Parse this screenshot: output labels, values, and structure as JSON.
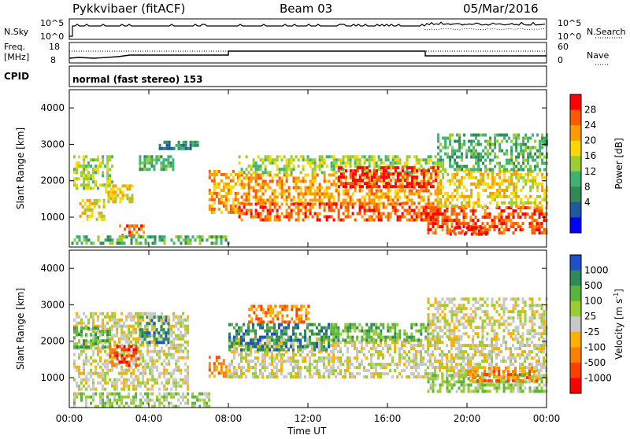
{
  "header": {
    "station": "Pykkvibaer (fitACF)",
    "beam": "Beam 03",
    "date": "05/Mar/2016"
  },
  "panels": {
    "nsky": {
      "label": "N.Sky",
      "ticks_left": [
        "10^5",
        "10^0"
      ],
      "ticks_right": [
        "10^5",
        "10^0"
      ],
      "right_label": "N.Search"
    },
    "freq": {
      "label_line1": "Freq.",
      "label_line2": "[MHz]",
      "ticks_left": [
        "18",
        "8"
      ],
      "ticks_right": [
        "60",
        "0"
      ],
      "right_label": "Nave"
    },
    "cpid": {
      "label": "CPID",
      "text": "normal (fast stereo) 153"
    }
  },
  "chart_data": [
    {
      "type": "heatmap",
      "title": "",
      "xlabel": "",
      "ylabel": "Slant Range [km]",
      "xlim": [
        0,
        24
      ],
      "ylim": [
        180,
        4500
      ],
      "x_ticks": [
        "00:00",
        "04:00",
        "08:00",
        "12:00",
        "16:00",
        "20:00",
        "00:00"
      ],
      "y_ticks": [
        "1000",
        "2000",
        "3000",
        "4000"
      ],
      "colorbar": {
        "label": "Power [dB]",
        "ticks": [
          "28",
          "24",
          "20",
          "16",
          "12",
          "8",
          "4"
        ],
        "colors": [
          "#ff0000",
          "#ff5a00",
          "#ff9a00",
          "#ffd700",
          "#9acd32",
          "#3cb371",
          "#2e8b57",
          "#1e5aa0",
          "#0000ff"
        ]
      },
      "regions": [
        {
          "x0": 0.2,
          "x1": 2.2,
          "y0": 1800,
          "y1": 2700,
          "level": 4
        },
        {
          "x0": 0.5,
          "x1": 1.8,
          "y0": 900,
          "y1": 1500,
          "level": 3
        },
        {
          "x0": 1.8,
          "x1": 3.2,
          "y0": 1400,
          "y1": 1900,
          "level": 3
        },
        {
          "x0": 2.5,
          "x1": 3.8,
          "y0": 500,
          "y1": 800,
          "level": 1
        },
        {
          "x0": 0.1,
          "x1": 8.0,
          "y0": 250,
          "y1": 500,
          "level": 5
        },
        {
          "x0": 3.5,
          "x1": 5.2,
          "y0": 2300,
          "y1": 2700,
          "level": 5
        },
        {
          "x0": 7.0,
          "x1": 8.5,
          "y0": 1100,
          "y1": 2300,
          "level": 2
        },
        {
          "x0": 8.5,
          "x1": 18.5,
          "y0": 1400,
          "y1": 2200,
          "level": 2
        },
        {
          "x0": 8.5,
          "x1": 18.5,
          "y0": 900,
          "y1": 1400,
          "level": 1
        },
        {
          "x0": 8.5,
          "x1": 18.5,
          "y0": 2200,
          "y1": 2700,
          "level": 4
        },
        {
          "x0": 13.5,
          "x1": 18.5,
          "y0": 1800,
          "y1": 2400,
          "level": 0
        },
        {
          "x0": 18.0,
          "x1": 24.0,
          "y0": 600,
          "y1": 1300,
          "level": 1
        },
        {
          "x0": 19.0,
          "x1": 21.0,
          "y0": 500,
          "y1": 750,
          "level": 0
        },
        {
          "x0": 18.5,
          "x1": 24.0,
          "y0": 1300,
          "y1": 2300,
          "level": 3
        },
        {
          "x0": 18.5,
          "x1": 24.0,
          "y0": 2300,
          "y1": 3300,
          "level": 5
        },
        {
          "x0": 4.5,
          "x1": 6.5,
          "y0": 2900,
          "y1": 3100,
          "level": 6
        }
      ]
    },
    {
      "type": "heatmap",
      "title": "",
      "xlabel": "Time UT",
      "ylabel": "Slant Range [km]",
      "xlim": [
        0,
        24
      ],
      "ylim": [
        180,
        4500
      ],
      "x_ticks": [
        "00:00",
        "04:00",
        "08:00",
        "12:00",
        "16:00",
        "20:00",
        "00:00"
      ],
      "y_ticks": [
        "1000",
        "2000",
        "3000",
        "4000"
      ],
      "colorbar": {
        "label": "Velocity [m s^-1]",
        "ticks": [
          "1000",
          "500",
          "100",
          "25",
          "-25",
          "-100",
          "-500",
          "-1000"
        ],
        "colors": [
          "#1e50c8",
          "#2e8b57",
          "#5ab43c",
          "#9acd32",
          "#c8c8c8",
          "#ffb000",
          "#ff8000",
          "#ff4000",
          "#ff0000"
        ]
      },
      "regions": [
        {
          "x0": 0.2,
          "x1": 6.0,
          "y0": 700,
          "y1": 2800,
          "level": 4
        },
        {
          "x0": 0.2,
          "x1": 2.0,
          "y0": 1800,
          "y1": 2400,
          "level": 2
        },
        {
          "x0": 2.0,
          "x1": 3.5,
          "y0": 1300,
          "y1": 1900,
          "level": 7
        },
        {
          "x0": 3.5,
          "x1": 5.0,
          "y0": 2000,
          "y1": 2700,
          "level": 1
        },
        {
          "x0": 0.2,
          "x1": 7.0,
          "y0": 250,
          "y1": 600,
          "level": 3
        },
        {
          "x0": 7.0,
          "x1": 8.0,
          "y0": 1000,
          "y1": 1600,
          "level": 6
        },
        {
          "x0": 8.0,
          "x1": 24.0,
          "y0": 1000,
          "y1": 2100,
          "level": 4
        },
        {
          "x0": 8.0,
          "x1": 13.0,
          "y0": 1800,
          "y1": 2500,
          "level": 1
        },
        {
          "x0": 9.0,
          "x1": 12.0,
          "y0": 2500,
          "y1": 3000,
          "level": 6
        },
        {
          "x0": 13.0,
          "x1": 18.0,
          "y0": 2000,
          "y1": 2500,
          "level": 2
        },
        {
          "x0": 18.0,
          "x1": 24.0,
          "y0": 600,
          "y1": 1100,
          "level": 3
        },
        {
          "x0": 20.0,
          "x1": 23.5,
          "y0": 900,
          "y1": 1300,
          "level": 6
        },
        {
          "x0": 18.0,
          "x1": 24.0,
          "y0": 2100,
          "y1": 3200,
          "level": 4
        }
      ]
    }
  ]
}
